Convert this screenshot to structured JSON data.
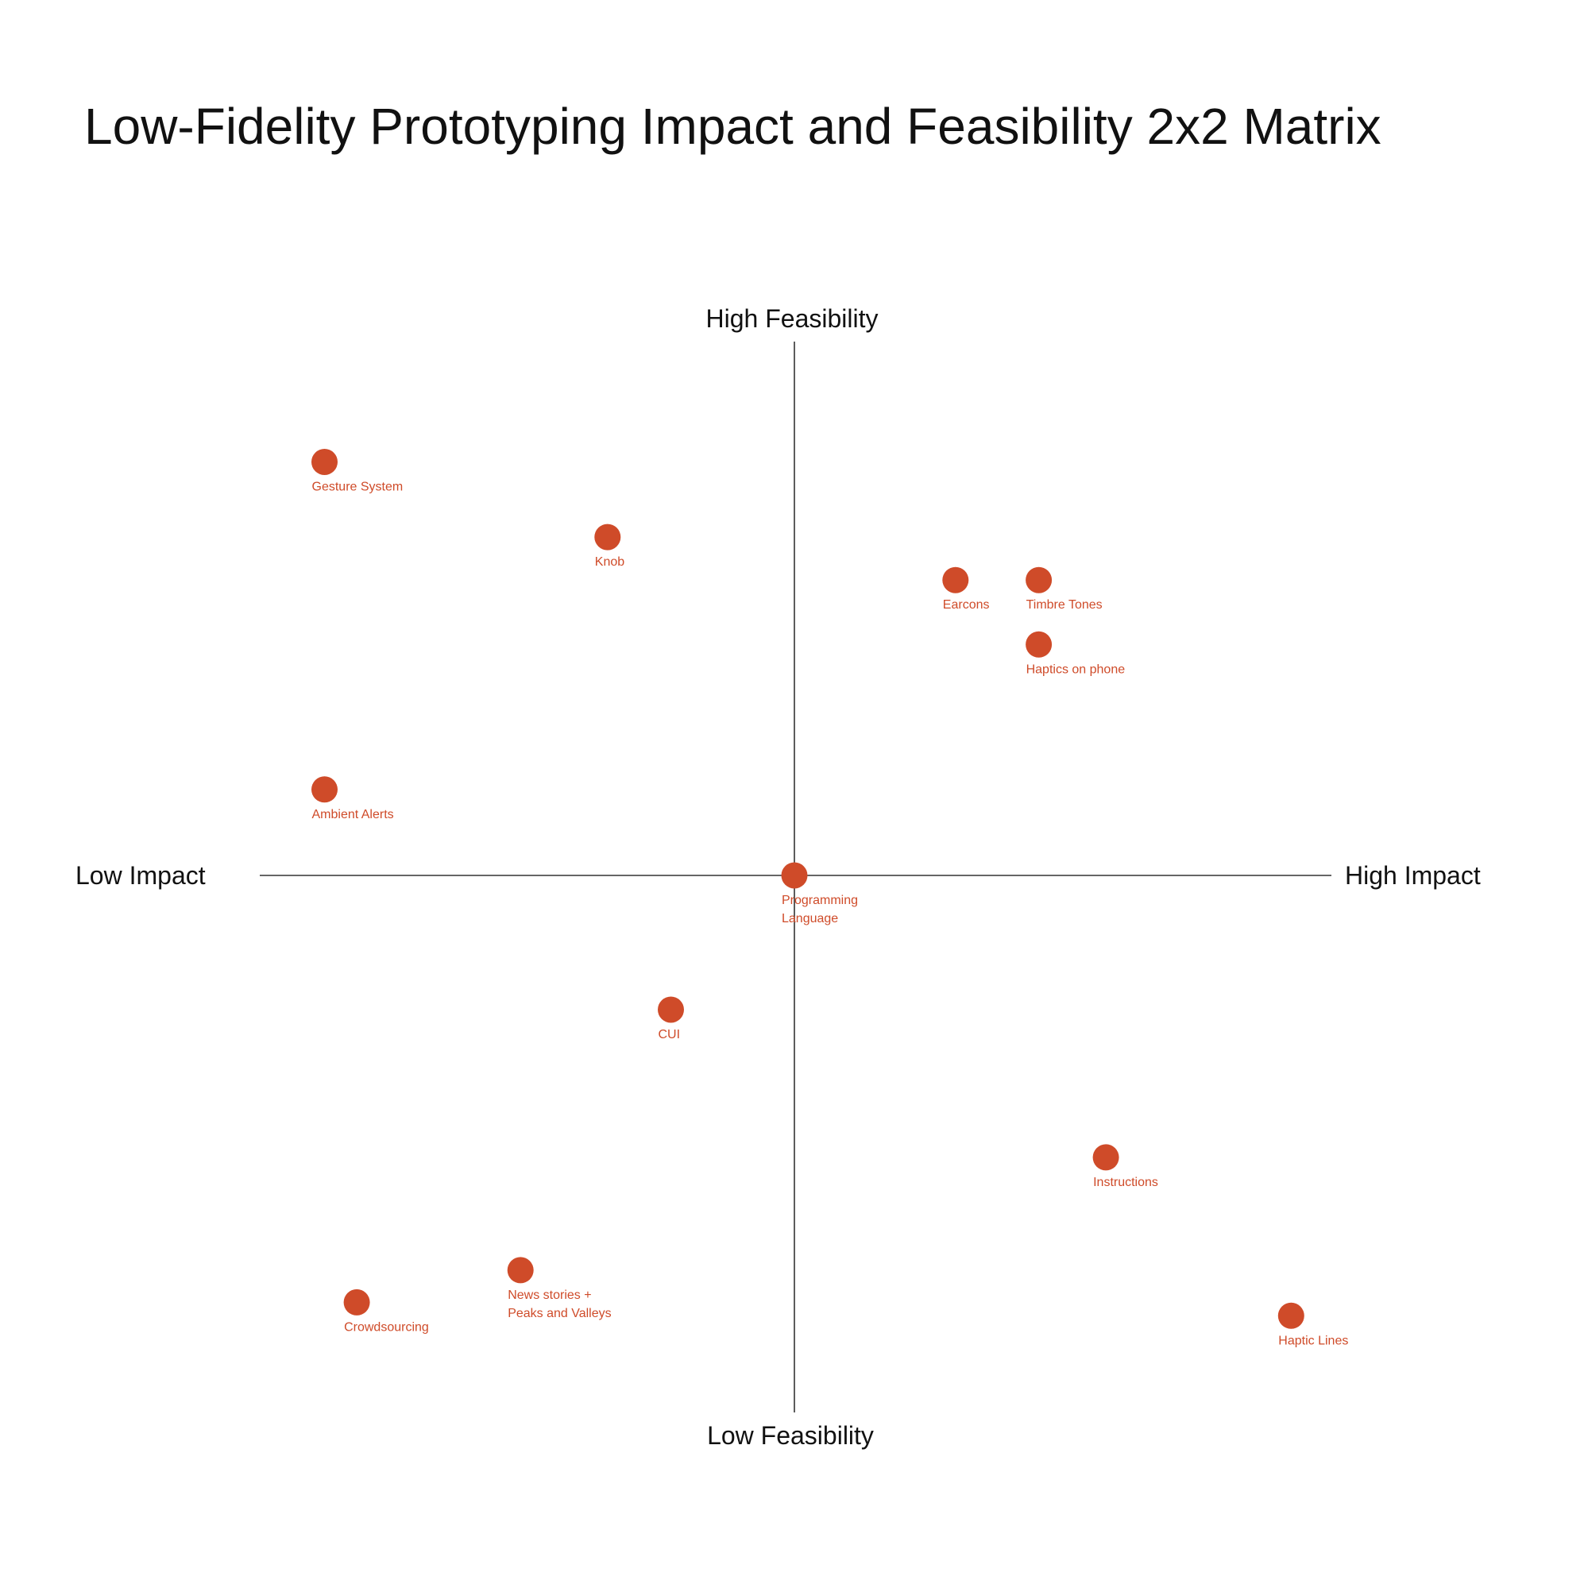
{
  "colors": {
    "accent": "#cf4b29",
    "axis": "#333333",
    "text": "#111111",
    "background": "#ffffff"
  },
  "chart_data": {
    "type": "scatter",
    "title": "Low-Fidelity Prototyping Impact and Feasibility 2x2 Matrix",
    "xlabel": "Impact",
    "ylabel": "Feasibility",
    "x_axis": {
      "low_label": "Low Impact",
      "high_label": "High Impact"
    },
    "y_axis": {
      "low_label": "Low Feasibility",
      "high_label": "High Feasibility"
    },
    "xlim": [
      -1,
      1
    ],
    "ylim": [
      -1,
      1
    ],
    "grid": false,
    "points": [
      {
        "id": "gesture-system",
        "label_lines": [
          "Gesture System"
        ],
        "x": -0.875,
        "y": 0.77
      },
      {
        "id": "knob",
        "label_lines": [
          "Knob"
        ],
        "x": -0.348,
        "y": 0.63
      },
      {
        "id": "earcons",
        "label_lines": [
          "Earcons"
        ],
        "x": 0.3,
        "y": 0.55
      },
      {
        "id": "timbre-tones",
        "label_lines": [
          "Timbre Tones"
        ],
        "x": 0.455,
        "y": 0.55
      },
      {
        "id": "haptics-on-phone",
        "label_lines": [
          "Haptics on phone"
        ],
        "x": 0.455,
        "y": 0.43
      },
      {
        "id": "ambient-alerts",
        "label_lines": [
          "Ambient Alerts"
        ],
        "x": -0.875,
        "y": 0.16
      },
      {
        "id": "programming-language",
        "label_lines": [
          "Programming",
          "Language"
        ],
        "x": 0.0,
        "y": 0.0
      },
      {
        "id": "cui",
        "label_lines": [
          "CUI"
        ],
        "x": -0.23,
        "y": -0.25
      },
      {
        "id": "instructions",
        "label_lines": [
          "Instructions"
        ],
        "x": 0.58,
        "y": -0.525
      },
      {
        "id": "news-stories",
        "label_lines": [
          "News stories +",
          "Peaks and Valleys"
        ],
        "x": -0.51,
        "y": -0.735
      },
      {
        "id": "crowdsourcing",
        "label_lines": [
          "Crowdsourcing"
        ],
        "x": -0.815,
        "y": -0.795
      },
      {
        "id": "haptic-lines",
        "label_lines": [
          "Haptic Lines"
        ],
        "x": 0.925,
        "y": -0.82
      }
    ]
  }
}
